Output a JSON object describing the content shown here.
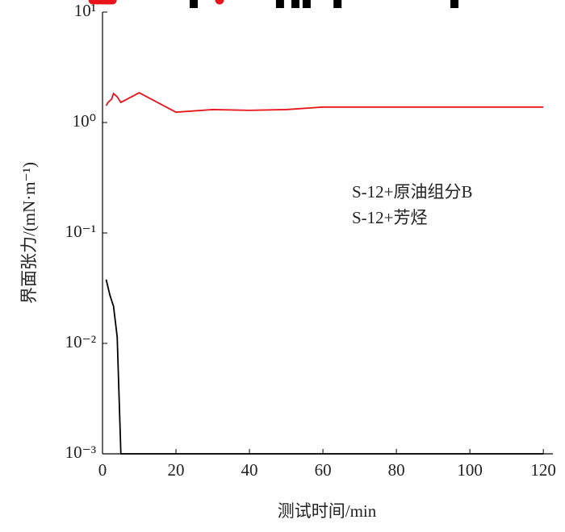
{
  "chart_data": {
    "type": "line",
    "xlabel": "测试时间/min",
    "ylabel": "界面张力/(mN·m⁻¹)",
    "xlim": [
      0,
      122.6
    ],
    "xticks": [
      0,
      20,
      40,
      60,
      80,
      100,
      120
    ],
    "ylim": [
      0.001,
      10
    ],
    "yscale": "log",
    "yticks": [
      {
        "value": 0.001,
        "label": "10⁻³"
      },
      {
        "value": 0.01,
        "label": "10⁻²"
      },
      {
        "value": 0.1,
        "label": "10⁻¹"
      },
      {
        "value": 1,
        "label": "10⁰"
      },
      {
        "value": 10,
        "label": "10¹"
      }
    ],
    "legend": "right",
    "series": [
      {
        "name": "S-12+原油组分B",
        "color": "#000000",
        "marker": "square",
        "x": [
          1,
          2,
          3,
          4,
          5,
          10,
          20,
          30,
          40,
          50,
          60,
          70,
          80,
          90,
          100,
          110,
          120
        ],
        "values": [
          0.0378,
          0.0274,
          0.0217,
          0.0114,
          0.001,
          0.001,
          0.001,
          0.001,
          0.001,
          0.001,
          0.001,
          0.001,
          0.001,
          0.001,
          0.001,
          0.001,
          0.001
        ]
      },
      {
        "name": "S-12+芳烃",
        "color": "#e8141a",
        "marker": "circle",
        "x": [
          1,
          1.5,
          2.5,
          3,
          4,
          5,
          10,
          20,
          30,
          40,
          50,
          60,
          70,
          80,
          90,
          100,
          110,
          120
        ],
        "values": [
          1.42,
          1.52,
          1.63,
          1.83,
          1.71,
          1.52,
          1.86,
          1.24,
          1.31,
          1.29,
          1.31,
          1.38,
          1.38,
          1.38,
          1.38,
          1.38,
          1.38,
          1.38
        ]
      }
    ]
  }
}
